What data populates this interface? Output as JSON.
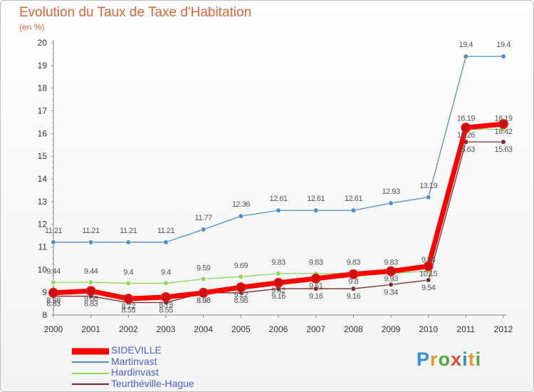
{
  "header": {
    "title": "Evolution du Taux de Taxe d'Habitation",
    "subtitle": "(en %)"
  },
  "brand": {
    "letters": [
      "P",
      "r",
      "o",
      "x",
      "i",
      "t",
      "i"
    ],
    "colors": [
      "#2f8fd8",
      "#e69a2e",
      "#4fa83d",
      "#e44a3a",
      "#2f8fd8",
      "#e69a2e",
      "#4fa83d"
    ]
  },
  "chart_data": {
    "type": "line",
    "title": "Evolution du Taux de Taxe d'Habitation",
    "ylabel": "(en %)",
    "xlabel": "",
    "x": [
      "2000",
      "2001",
      "2002",
      "2003",
      "2004",
      "2005",
      "2006",
      "2007",
      "2008",
      "2009",
      "2010",
      "2011",
      "2012"
    ],
    "ylim": [
      8,
      20
    ],
    "yticks": [
      "8",
      "9",
      "10",
      "11",
      "12",
      "13",
      "14",
      "15",
      "16",
      "17",
      "18",
      "19",
      "20"
    ],
    "grid": false,
    "legend_position": "bottom-left",
    "series": [
      {
        "name": "SIDEVILLE",
        "color": "#ff0000",
        "values": [
          8.98,
          9.06,
          8.72,
          8.79,
          8.98,
          9.22,
          9.42,
          9.61,
          9.8,
          9.93,
          10.15,
          16.26,
          16.42
        ],
        "labels": [
          "8.98",
          "9.06",
          "8.72",
          "8.79",
          "8.98",
          "9.22",
          "9.42",
          "9.61",
          "9.8",
          "9.93",
          "10.15",
          "16.26",
          "16.42"
        ]
      },
      {
        "name": "Martinvast",
        "color": "#4d8fc9",
        "values": [
          11.21,
          11.21,
          11.21,
          11.21,
          11.77,
          12.36,
          12.61,
          12.61,
          12.61,
          12.93,
          13.19,
          19.4,
          19.4
        ],
        "labels": [
          "11.21",
          "11.21",
          "11.21",
          "11.21",
          "11.77",
          "12.36",
          "12.61",
          "12.61",
          "12.61",
          "12.93",
          "13.19",
          "19.4",
          "19.4"
        ]
      },
      {
        "name": "Hardinvast",
        "color": "#8fd65a",
        "values": [
          9.44,
          9.44,
          9.4,
          9.4,
          9.59,
          9.69,
          9.83,
          9.83,
          9.83,
          9.83,
          9.94,
          16.19,
          16.19
        ],
        "labels": [
          "9.44",
          "9.44",
          "9.4",
          "9.4",
          "9.59",
          "9.69",
          "9.83",
          "9.83",
          "9.83",
          "9.83",
          "9.94",
          "16.19",
          "16.19"
        ]
      },
      {
        "name": "Teurthéville-Hague",
        "color": "#7a2a2a",
        "values": [
          8.83,
          8.83,
          8.55,
          8.55,
          8.98,
          8.98,
          9.16,
          9.16,
          9.16,
          9.34,
          9.54,
          15.63,
          15.63
        ],
        "labels": [
          "8.83",
          "8.83",
          "8.55",
          "8.55",
          "8.98",
          "8.98",
          "9.16",
          "9.16",
          "9.16",
          "9.34",
          "9.54",
          "15.63",
          "15.63"
        ]
      }
    ]
  }
}
